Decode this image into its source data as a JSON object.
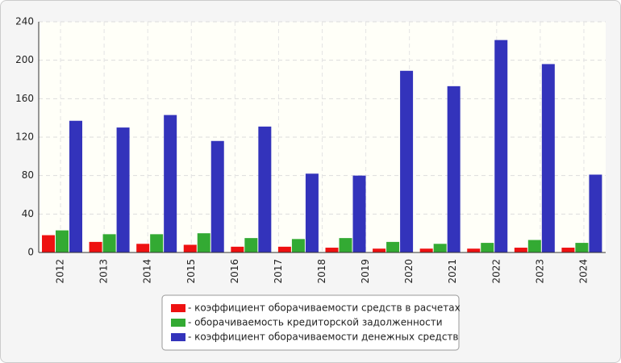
{
  "chart_data": {
    "type": "bar",
    "categories": [
      "2012",
      "2013",
      "2014",
      "2015",
      "2016",
      "2017",
      "2018",
      "2019",
      "2020",
      "2021",
      "2022",
      "2023",
      "2024"
    ],
    "series": [
      {
        "name": "- коэффициент оборачиваемости средств в расчетах",
        "color": "#ee1111",
        "values": [
          18,
          11,
          9,
          8,
          6,
          6,
          5,
          4,
          4,
          4,
          5,
          5,
          null
        ]
      },
      {
        "name": "- оборачиваемость кредиторской задолженности",
        "color": "#33aa33",
        "values": [
          23,
          19,
          19,
          20,
          15,
          14,
          15,
          11,
          9,
          10,
          13,
          10,
          null
        ]
      },
      {
        "name": "- коэффициент оборачиваемости денежных средств",
        "color": "#3333bb",
        "values": [
          137,
          130,
          143,
          116,
          131,
          82,
          80,
          189,
          173,
          221,
          196,
          81,
          null
        ]
      }
    ],
    "ylim": [
      0,
      240
    ],
    "yticks": [
      0,
      40,
      80,
      120,
      160,
      200,
      240
    ],
    "grid": true,
    "legend": "bottom"
  }
}
